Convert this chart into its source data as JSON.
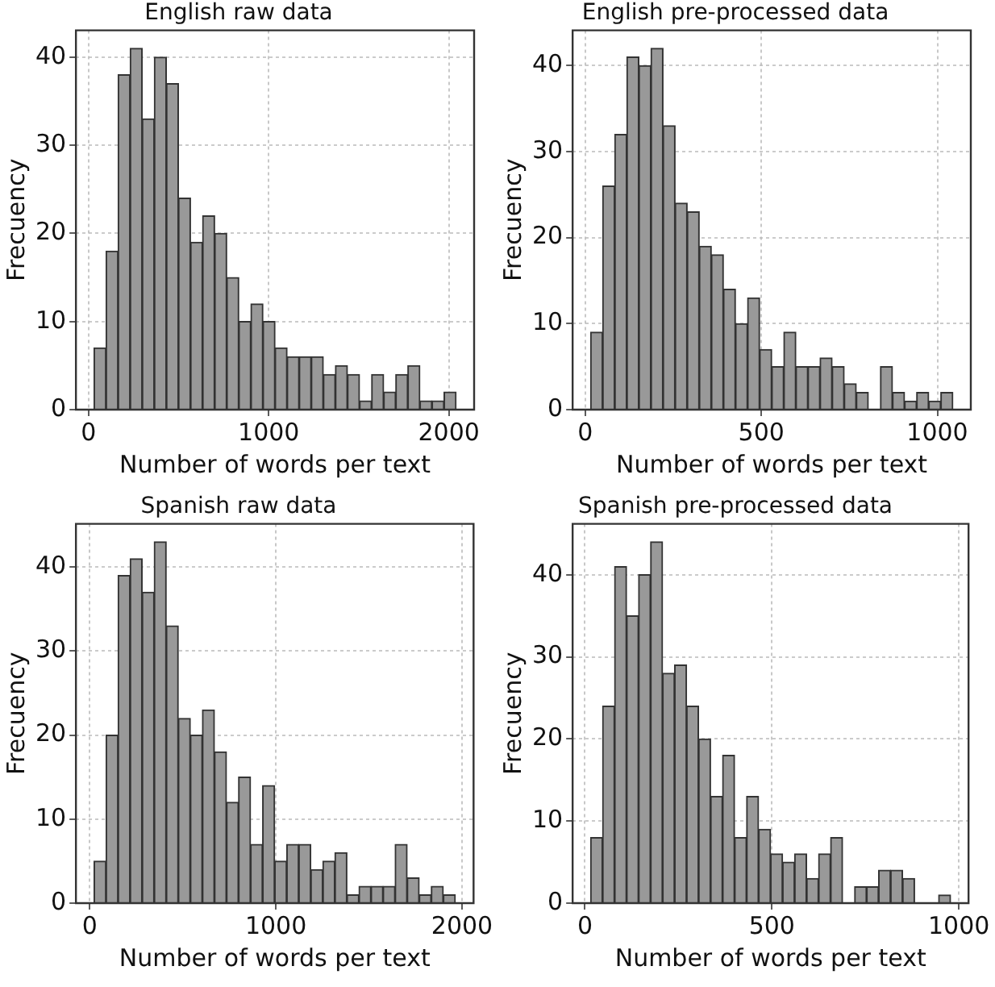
{
  "chart_data": [
    {
      "type": "histogram",
      "title": "English raw data",
      "xlabel": "Number of words per text",
      "ylabel": "Frecuency",
      "color": "#999999",
      "bins": [
        30,
        97,
        164,
        231,
        298,
        365,
        432,
        499,
        566,
        633,
        700,
        767,
        834,
        901,
        968,
        1035,
        1102,
        1169,
        1236,
        1303,
        1370,
        1437,
        1504,
        1571,
        1638,
        1705,
        1772,
        1839,
        1906,
        1973,
        2040
      ],
      "values": [
        7,
        18,
        38,
        41,
        33,
        40,
        37,
        24,
        19,
        22,
        20,
        15,
        10,
        12,
        10,
        7,
        6,
        6,
        6,
        4,
        5,
        4,
        1,
        4,
        2,
        4,
        5,
        1,
        1,
        2
      ],
      "xlim": [
        -70,
        2140
      ],
      "xticks": [
        0,
        1000,
        2000
      ],
      "ylim": [
        0,
        43.05
      ],
      "yticks": [
        0,
        10,
        20,
        30,
        40
      ],
      "grid": true
    },
    {
      "type": "histogram",
      "title": "English pre-processed data",
      "xlabel": "Number of words per text",
      "ylabel": "Frecuency",
      "color": "#999999",
      "bins": [
        15,
        49.3,
        83.6,
        117.9,
        152.2,
        186.5,
        220.8,
        255.1,
        289.4,
        323.7,
        358,
        392.3,
        426.6,
        460.9,
        495.2,
        529.5,
        563.8,
        598.1,
        632.4,
        666.7,
        701,
        735.3,
        769.6,
        803.9,
        838.2,
        872.5,
        906.8,
        941.1,
        975.4,
        1009.7,
        1044
      ],
      "values": [
        9,
        26,
        32,
        41,
        40,
        42,
        33,
        24,
        23,
        19,
        18,
        14,
        10,
        13,
        7,
        5,
        9,
        5,
        5,
        6,
        5,
        3,
        2,
        0,
        5,
        2,
        1,
        2,
        1,
        2
      ],
      "xlim": [
        -36,
        1095
      ],
      "xticks": [
        0,
        500,
        1000
      ],
      "ylim": [
        0,
        44.1
      ],
      "yticks": [
        0,
        10,
        20,
        30,
        40
      ],
      "grid": true
    },
    {
      "type": "histogram",
      "title": "Spanish raw data",
      "xlabel": "Number of words per text",
      "ylabel": "Frecuency",
      "color": "#999999",
      "bins": [
        23,
        87.7,
        152.4,
        217.1,
        281.8,
        346.5,
        411.2,
        475.9,
        540.6,
        605.3,
        670,
        734.7,
        799.4,
        864.1,
        928.8,
        993.5,
        1058.2,
        1122.9,
        1187.6,
        1252.3,
        1317,
        1381.7,
        1446.4,
        1511.1,
        1575.8,
        1640.5,
        1705.2,
        1769.9,
        1834.6,
        1899.3,
        1964
      ],
      "values": [
        5,
        20,
        39,
        41,
        37,
        43,
        33,
        22,
        20,
        23,
        18,
        12,
        15,
        7,
        14,
        5,
        7,
        7,
        4,
        5,
        6,
        1,
        2,
        2,
        2,
        7,
        3,
        1,
        2,
        1
      ],
      "xlim": [
        -74,
        2062
      ],
      "xticks": [
        0,
        1000,
        2000
      ],
      "ylim": [
        0,
        45.15
      ],
      "yticks": [
        0,
        10,
        20,
        30,
        40
      ],
      "grid": true
    },
    {
      "type": "histogram",
      "title": "Spanish pre-processed data",
      "xlabel": "Number of words per text",
      "ylabel": "Frecuency",
      "color": "#999999",
      "bins": [
        15,
        47.1,
        79.2,
        111.3,
        143.4,
        175.5,
        207.6,
        239.7,
        271.8,
        303.9,
        336,
        368.1,
        400.2,
        432.3,
        464.4,
        496.5,
        528.6,
        560.7,
        592.8,
        624.9,
        657,
        689.1,
        721.2,
        753.3,
        785.4,
        817.5,
        849.6,
        881.7,
        913.8,
        945.9,
        978
      ],
      "values": [
        8,
        24,
        41,
        35,
        40,
        44,
        28,
        29,
        24,
        20,
        13,
        18,
        8,
        13,
        9,
        6,
        5,
        6,
        3,
        6,
        8,
        0,
        2,
        2,
        4,
        4,
        3,
        0,
        0,
        1
      ],
      "xlim": [
        -33,
        1026
      ],
      "xticks": [
        0,
        500,
        1000
      ],
      "ylim": [
        0,
        46.2
      ],
      "yticks": [
        0,
        10,
        20,
        30,
        40
      ],
      "grid": true
    }
  ]
}
